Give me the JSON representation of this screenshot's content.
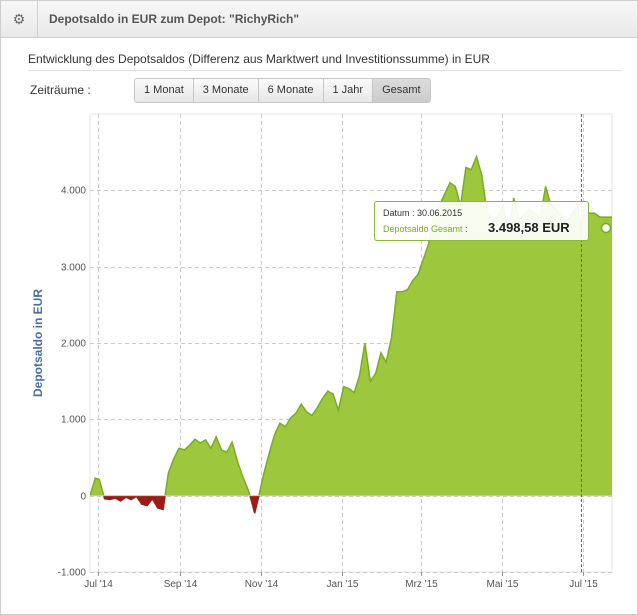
{
  "header": {
    "title": "Depotsaldo in EUR zum Depot: \"RichyRich\"",
    "settings_icon": "gear-icon"
  },
  "subtitle": "Entwicklung des Depotsaldos (Differenz aus Marktwert und Investitionssumme) in EUR",
  "range": {
    "label": "Zeiträume :",
    "buttons": [
      "1 Monat",
      "3 Monate",
      "6 Monate",
      "1 Jahr",
      "Gesamt"
    ],
    "active": "Gesamt"
  },
  "tooltip": {
    "date_label": "Datum",
    "date": "30.06.2015",
    "series_label": "Depotsaldo Gesamt",
    "value": "3.498,58 EUR"
  },
  "colors": {
    "positive": "#9dc83e",
    "positive_line": "#7aab26",
    "negative": "#9b1c12",
    "axis_title": "#4c6e9e",
    "grid": "#cccccc"
  },
  "chart_data": {
    "type": "area",
    "ylabel": "Depotsaldo in EUR",
    "xlabel": "",
    "ylim": [
      -1000,
      5000
    ],
    "yticks": [
      -1000,
      0,
      1000,
      2000,
      3000,
      4000
    ],
    "ytick_labels": [
      "-1.000",
      "0",
      "1.000",
      "2.000",
      "3.000",
      "4.000"
    ],
    "xlim": [
      "2014-06-25",
      "2015-07-23"
    ],
    "xticks": [
      "2014-07-01",
      "2014-09-01",
      "2014-11-01",
      "2015-01-01",
      "2015-03-01",
      "2015-05-01",
      "2015-07-01"
    ],
    "xtick_labels": [
      "Jul '14",
      "Sep '14",
      "Nov '14",
      "Jan '15",
      "Mrz '15",
      "Mai '15",
      "Jul '15"
    ],
    "grid": true,
    "legend": "none",
    "highlighted_point": {
      "x": "2015-06-30",
      "y": 3498.58
    },
    "series": [
      {
        "name": "Depotsaldo Gesamt",
        "x": [
          "2014-06-25",
          "2014-06-29",
          "2014-07-02",
          "2014-07-06",
          "2014-07-10",
          "2014-07-14",
          "2014-07-18",
          "2014-07-22",
          "2014-07-26",
          "2014-07-30",
          "2014-08-03",
          "2014-08-07",
          "2014-08-11",
          "2014-08-15",
          "2014-08-19",
          "2014-08-23",
          "2014-08-27",
          "2014-08-31",
          "2014-09-04",
          "2014-09-08",
          "2014-09-12",
          "2014-09-16",
          "2014-09-20",
          "2014-09-24",
          "2014-09-28",
          "2014-10-02",
          "2014-10-06",
          "2014-10-10",
          "2014-10-14",
          "2014-10-18",
          "2014-10-22",
          "2014-10-24",
          "2014-10-27",
          "2014-10-30",
          "2014-11-03",
          "2014-11-07",
          "2014-11-11",
          "2014-11-15",
          "2014-11-19",
          "2014-11-23",
          "2014-11-27",
          "2014-12-01",
          "2014-12-05",
          "2014-12-09",
          "2014-12-13",
          "2014-12-17",
          "2014-12-21",
          "2014-12-25",
          "2014-12-29",
          "2015-01-02",
          "2015-01-06",
          "2015-01-10",
          "2015-01-14",
          "2015-01-18",
          "2015-01-22",
          "2015-01-26",
          "2015-01-30",
          "2015-02-03",
          "2015-02-07",
          "2015-02-11",
          "2015-02-15",
          "2015-02-19",
          "2015-02-23",
          "2015-02-27",
          "2015-03-03",
          "2015-03-07",
          "2015-03-11",
          "2015-03-15",
          "2015-03-19",
          "2015-03-23",
          "2015-03-27",
          "2015-03-31",
          "2015-04-04",
          "2015-04-08",
          "2015-04-12",
          "2015-04-16",
          "2015-04-20",
          "2015-04-24",
          "2015-04-28",
          "2015-05-02",
          "2015-05-06",
          "2015-05-10",
          "2015-05-14",
          "2015-05-18",
          "2015-05-22",
          "2015-05-26",
          "2015-05-30",
          "2015-06-03",
          "2015-06-07",
          "2015-06-11",
          "2015-06-15",
          "2015-06-19",
          "2015-06-23",
          "2015-06-27",
          "2015-06-30",
          "2015-07-02",
          "2015-07-06",
          "2015-07-10",
          "2015-07-14",
          "2015-07-18",
          "2015-07-23"
        ],
        "y": [
          0,
          230,
          210,
          -40,
          -50,
          -30,
          -70,
          -20,
          -50,
          -10,
          -110,
          -130,
          -40,
          -160,
          -180,
          300,
          480,
          620,
          600,
          660,
          740,
          690,
          730,
          620,
          770,
          600,
          570,
          700,
          450,
          250,
          80,
          -30,
          -230,
          -10,
          300,
          560,
          800,
          950,
          900,
          1020,
          1080,
          1200,
          1100,
          1050,
          1150,
          1270,
          1370,
          1330,
          1120,
          1430,
          1400,
          1350,
          1580,
          2000,
          1500,
          1600,
          1870,
          1750,
          2070,
          2670,
          2670,
          2700,
          2820,
          2900,
          3100,
          3300,
          3700,
          3800,
          3950,
          4100,
          4050,
          3800,
          4300,
          4270,
          4440,
          4200,
          3700,
          3600,
          3650,
          3800,
          3450,
          3900,
          3600,
          3700,
          3750,
          3700,
          3650,
          4050,
          3800,
          3750,
          3650,
          3600,
          3700,
          3780,
          3498.58,
          3750,
          3700,
          3700,
          3650,
          3650,
          3650
        ]
      }
    ]
  }
}
